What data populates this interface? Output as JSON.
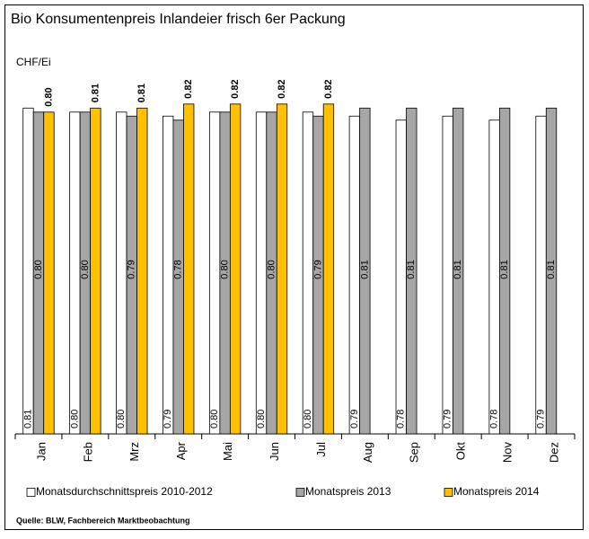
{
  "chart_data": {
    "type": "bar",
    "title": "Bio Konsumentenpreis Inlandeier frisch 6er Packung",
    "y_label": "CHF/Ei",
    "source": "Quelle: BLW, Fachbereich Marktbeobachtung",
    "categories": [
      "Jan",
      "Feb",
      "Mrz",
      "Apr",
      "Mai",
      "Jun",
      "Jul",
      "Aug",
      "Sep",
      "Okt",
      "Nov",
      "Dez"
    ],
    "series": [
      {
        "name": "Monatsdurchschnittspreis 2010-2012",
        "color": "#ffffff",
        "values": [
          0.81,
          0.8,
          0.8,
          0.79,
          0.8,
          0.8,
          0.8,
          0.79,
          0.78,
          0.79,
          0.78,
          0.79
        ],
        "value_labels": [
          "0.81",
          "0.80",
          "0.80",
          "0.79",
          "0.80",
          "0.80",
          "0.80",
          "0.79",
          "0.78",
          "0.79",
          "0.78",
          "0.79"
        ]
      },
      {
        "name": "Monatspreis 2013",
        "color": "#a6a6a6",
        "values": [
          0.8,
          0.8,
          0.79,
          0.78,
          0.8,
          0.8,
          0.79,
          0.81,
          0.81,
          0.81,
          0.81,
          0.81
        ],
        "value_labels": [
          "0.80",
          "0.80",
          "0.79",
          "0.78",
          "0.80",
          "0.80",
          "0.79",
          "0.81",
          "0.81",
          "0.81",
          "0.81",
          "0.81"
        ]
      },
      {
        "name": "Monatspreis 2014",
        "color": "#ffc000",
        "values": [
          0.8,
          0.81,
          0.81,
          0.82,
          0.82,
          0.82,
          0.82,
          null,
          null,
          null,
          null,
          null
        ],
        "value_labels": [
          "0.80",
          "0.81",
          "0.81",
          "0.82",
          "0.82",
          "0.82",
          "0.82",
          null,
          null,
          null,
          null,
          null
        ]
      }
    ],
    "ylim": [
      0,
      0.9
    ],
    "legend": "bottom"
  }
}
